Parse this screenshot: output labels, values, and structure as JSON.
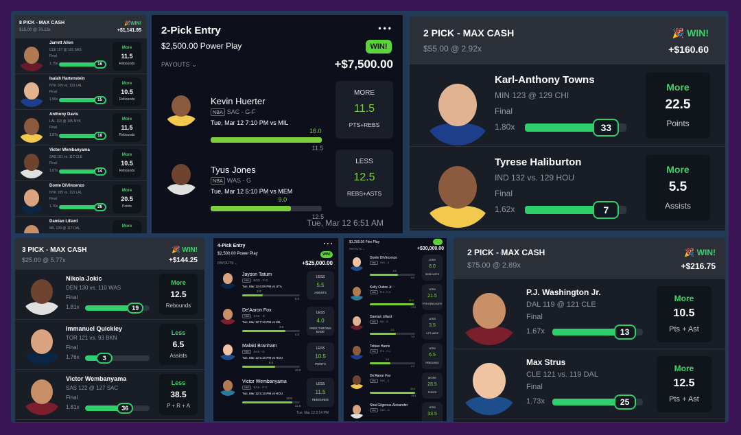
{
  "colors": {
    "bg": "#3a1455",
    "green": "#2fcf6e",
    "win": "#5bd33a",
    "lime": "#7ccf3a"
  },
  "p1": {
    "title": "8 PICK - MAX CASH",
    "sub": "$15.00 @ 76.13x",
    "win": "WIN!",
    "payout": "+$1,141.95",
    "rows": [
      {
        "name": "Jarrett Allen",
        "game": "CLE 117 @ 101 SAS",
        "status": "Final",
        "mult": "1.75x",
        "badge": "16",
        "dir": "More",
        "line": "11.5",
        "stat": "Rebounds",
        "fill": 0.85
      },
      {
        "name": "Isaiah Hartenstein",
        "game": "NYK 105 vs. 113 LAL",
        "status": "Final",
        "mult": "1.56x",
        "badge": "15",
        "dir": "More",
        "line": "10.5",
        "stat": "Rebounds",
        "fill": 0.85
      },
      {
        "name": "Anthony Davis",
        "game": "LAL 113 @ 105 NYK",
        "status": "Final",
        "mult": "1.87x",
        "badge": "18",
        "dir": "More",
        "line": "11.5",
        "stat": "Rebounds",
        "fill": 0.85
      },
      {
        "name": "Victor Wembanyama",
        "game": "SAS 101 vs. 117 CLE",
        "status": "Final",
        "mult": "1.67x",
        "badge": "14",
        "dir": "More",
        "line": "10.5",
        "stat": "Rebounds",
        "fill": 0.85
      },
      {
        "name": "Donte DiVincenzo",
        "game": "NYK 105 vs. 113 LAL",
        "status": "Final",
        "mult": "1.70x",
        "badge": "26",
        "dir": "More",
        "line": "20.5",
        "stat": "Points",
        "fill": 0.85
      },
      {
        "name": "Damian Lillard",
        "game": "MIL 129 @ 117 DAL",
        "status": "",
        "mult": "",
        "badge": "",
        "dir": "More",
        "line": "",
        "stat": "",
        "fill": 0
      }
    ]
  },
  "p2": {
    "title": "2-Pick Entry",
    "sub": "$2,500.00 Power Play",
    "win": "WIN!",
    "payouts": "PAYOUTS",
    "payout": "+$7,500.00",
    "footer": "Tue, Mar 12 6:51 AM",
    "rows": [
      {
        "name": "Kevin Huerter",
        "league": "NBA",
        "team": "SAC - G-F",
        "time": "Tue, Mar 12 7:10 PM  vs MIL",
        "actual": "16.0",
        "line": "11.5",
        "dir": "MORE",
        "val": "11.5",
        "stat": "PTS+REBS",
        "fill": 1.0
      },
      {
        "name": "Tyus Jones",
        "league": "NBA",
        "team": "WAS - G",
        "time": "Tue, Mar 12 5:10 PM  vs MEM",
        "actual": "9.0",
        "line": "12.5",
        "dir": "LESS",
        "val": "12.5",
        "stat": "REBS+ASTS",
        "fill": 0.72
      }
    ]
  },
  "p3": {
    "title": "2 PICK - MAX CASH",
    "sub": "$55.00 @ 2.92x",
    "win": "WIN!",
    "payout": "+$160.60",
    "rows": [
      {
        "name": "Karl-Anthony Towns",
        "game": "MIN 123 @ 129 CHI",
        "status": "Final",
        "mult": "1.80x",
        "badge": "33",
        "dir": "More",
        "line": "22.5",
        "stat": "Points",
        "fill": 0.8
      },
      {
        "name": "Tyrese Haliburton",
        "game": "IND 132 vs. 129 HOU",
        "status": "Final",
        "mult": "1.62x",
        "badge": "7",
        "dir": "More",
        "line": "5.5",
        "stat": "Assists",
        "fill": 0.8
      }
    ]
  },
  "p4": {
    "title": "3 PICK - MAX CASH",
    "sub": "$25.00 @ 5.77x",
    "win": "WIN!",
    "payout": "+$144.25",
    "rows": [
      {
        "name": "Nikola Jokic",
        "game": "DEN 130 vs. 110 WAS",
        "status": "Final",
        "mult": "1.81x",
        "badge": "19",
        "dir": "More",
        "line": "12.5",
        "stat": "Rebounds",
        "fill": 0.78
      },
      {
        "name": "Immanuel Quickley",
        "game": "TOR 121 vs. 93 BKN",
        "status": "Final",
        "mult": "1.76x",
        "badge": "3",
        "dir": "Less",
        "line": "6.5",
        "stat": "Assists",
        "fill": 0.3
      },
      {
        "name": "Victor Wembanyama",
        "game": "SAS 122 @ 127 SAC",
        "status": "Final",
        "mult": "1.81x",
        "badge": "36",
        "dir": "Less",
        "line": "38.5",
        "stat": "P + R + A",
        "fill": 0.62
      }
    ]
  },
  "p5": {
    "title": "4-Pick Entry",
    "sub": "$2,500.00 Power Play",
    "win": "WIN!",
    "payouts": "PAYOUTS",
    "payout": "+$25,000.00",
    "footer": "Tue, Mar 12 2:14 PM",
    "rows": [
      {
        "name": "Jayson Tatum",
        "league": "NBA",
        "team": "BOS - F-G",
        "time": "Tue, Mar 12 6:00 PM  vs UTA",
        "actual": "2.0",
        "line": "5.5",
        "dir": "LESS",
        "val": "5.5",
        "stat": "ASSISTS",
        "fill": 0.36
      },
      {
        "name": "De'Aaron Fox",
        "league": "NBA",
        "team": "SAC - G",
        "time": "Tue, Mar 12 7:10 PM  vs MIL",
        "actual": "3.0",
        "line": "4.0",
        "dir": "LESS",
        "val": "4.0",
        "stat": "FREE THROWS MADE",
        "fill": 0.75
      },
      {
        "name": "Malaki Branham",
        "league": "NBA",
        "team": "SAS - G",
        "time": "Tue, Mar 12 5:10 PM  vs HOU",
        "actual": "6.0",
        "line": "10.5",
        "dir": "LESS",
        "val": "10.5",
        "stat": "POINTS",
        "fill": 0.57
      },
      {
        "name": "Victor Wembanyama",
        "league": "NBA",
        "team": "SAS - F-C",
        "time": "Tue, Mar 12 5:10 PM  vs HOU",
        "actual": "10.0",
        "line": "11.5",
        "dir": "LESS",
        "val": "11.5",
        "stat": "REBOUNDS",
        "fill": 0.87
      }
    ]
  },
  "p6": {
    "title": "$1,200.00 Flex Play",
    "payout": "+$30,000.00",
    "payouts": "PAYOUTS",
    "rows": [
      {
        "name": "Donte DiVincenzo",
        "league": "NBA",
        "team": "NYK - G",
        "actual": "5.0",
        "line": "8.0",
        "dir": "LESS",
        "val": "8.0",
        "stat": "REBS+ASTS",
        "fill": 0.62
      },
      {
        "name": "Kelly Oubre Jr.",
        "league": "NBA",
        "team": "PHI - F-G",
        "actual": "21.0",
        "line": "21.5",
        "dir": "LESS",
        "val": "21.5",
        "stat": "PTS+REBS+ASTS",
        "fill": 0.97
      },
      {
        "name": "Damian Lillard",
        "league": "NBA",
        "team": "MIL - G",
        "actual": "2.0",
        "line": "3.5",
        "dir": "LESS",
        "val": "3.5",
        "stat": "3-PT MADE",
        "fill": 0.57
      },
      {
        "name": "Tobias Harris",
        "league": "NBA",
        "team": "PHI - F-C",
        "actual": "3.0",
        "line": "6.5",
        "dir": "LESS",
        "val": "6.5",
        "stat": "REBOUNDS",
        "fill": 0.46
      },
      {
        "name": "De'Aaron Fox",
        "league": "NBA",
        "team": "SAC - G",
        "actual": "29.0",
        "line": "28.5",
        "dir": "MORE",
        "val": "28.5",
        "stat": "POINTS",
        "fill": 1.0
      },
      {
        "name": "Shai Gilgeous-Alexander",
        "league": "NBA",
        "team": "OKC - G",
        "actual": "",
        "line": "",
        "dir": "LESS",
        "val": "33.5",
        "stat": "",
        "fill": 0.9
      }
    ]
  },
  "p7": {
    "title": "2 PICK - MAX CASH",
    "sub": "$75.00 @ 2.89x",
    "win": "WIN!",
    "payout": "+$216.75",
    "rows": [
      {
        "name": "P.J. Washington Jr.",
        "game": "DAL 119 @ 121 CLE",
        "status": "Final",
        "mult": "1.67x",
        "badge": "13",
        "dir": "More",
        "line": "10.5",
        "stat": "Pts + Ast",
        "fill": 0.8
      },
      {
        "name": "Max Strus",
        "game": "CLE 121 vs. 119 DAL",
        "status": "Final",
        "mult": "1.73x",
        "badge": "25",
        "dir": "More",
        "line": "12.5",
        "stat": "Pts + Ast",
        "fill": 0.8
      }
    ]
  }
}
